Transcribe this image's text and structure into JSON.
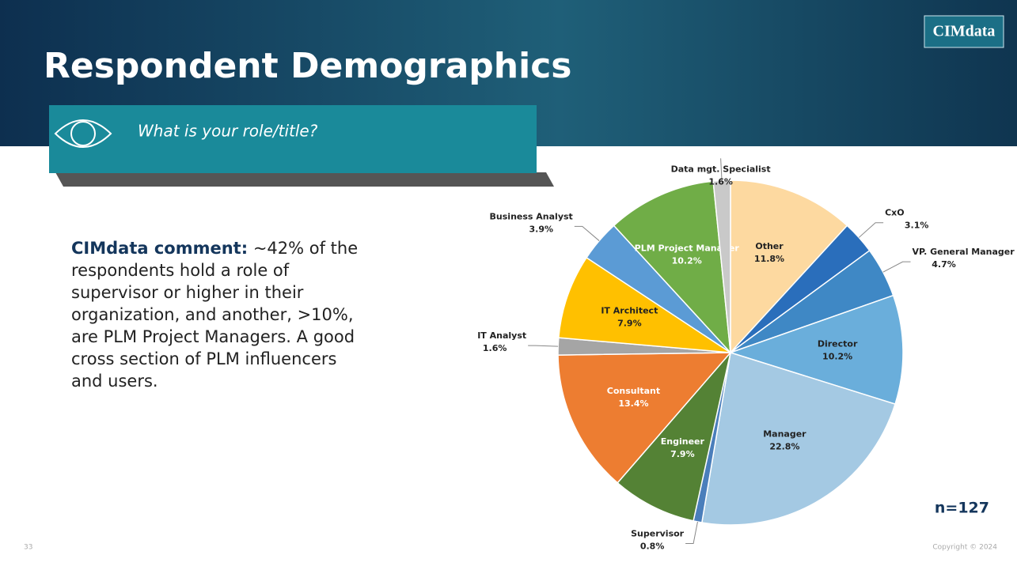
{
  "header": {
    "title": "Respondent Demographics",
    "logo": "CIMdata",
    "question": "What is your role/title?"
  },
  "comment": {
    "lead": "CIMdata comment:",
    "body": "~42% of the respondents hold a role of supervisor or higher in their organization, and another, >10%, are PLM Project Managers. A good cross section of PLM influencers and users."
  },
  "chart_data": {
    "type": "pie",
    "categories": [
      "Other",
      "CxO",
      "VP. General Manager",
      "Director",
      "Manager",
      "Supervisor",
      "Engineer",
      "Consultant",
      "IT Analyst",
      "IT Architect",
      "Business Analyst",
      "PLM Project Manager",
      "Data mgt. Specialist"
    ],
    "values": [
      11.8,
      3.1,
      4.7,
      10.2,
      22.8,
      0.8,
      7.9,
      13.4,
      1.6,
      7.9,
      3.9,
      10.2,
      1.6
    ],
    "value_labels": [
      "11.8%",
      "3.1%",
      "4.7%",
      "10.2%",
      "22.8%",
      "0.8%",
      "7.9%",
      "13.4%",
      "1.6%",
      "7.9%",
      "3.9%",
      "10.2%",
      "1.6%"
    ],
    "colors": [
      "#fdd9a0",
      "#2a6ebb",
      "#3f88c5",
      "#6aaedb",
      "#a4c9e3",
      "#4a7ebb",
      "#548235",
      "#ed7d31",
      "#a5a5a5",
      "#ffc000",
      "#5b9bd5",
      "#70ad47",
      "#c9c9c9"
    ],
    "annotation": "n=127"
  },
  "footer": {
    "page": "33",
    "copyright": "Copyright © 2024"
  }
}
